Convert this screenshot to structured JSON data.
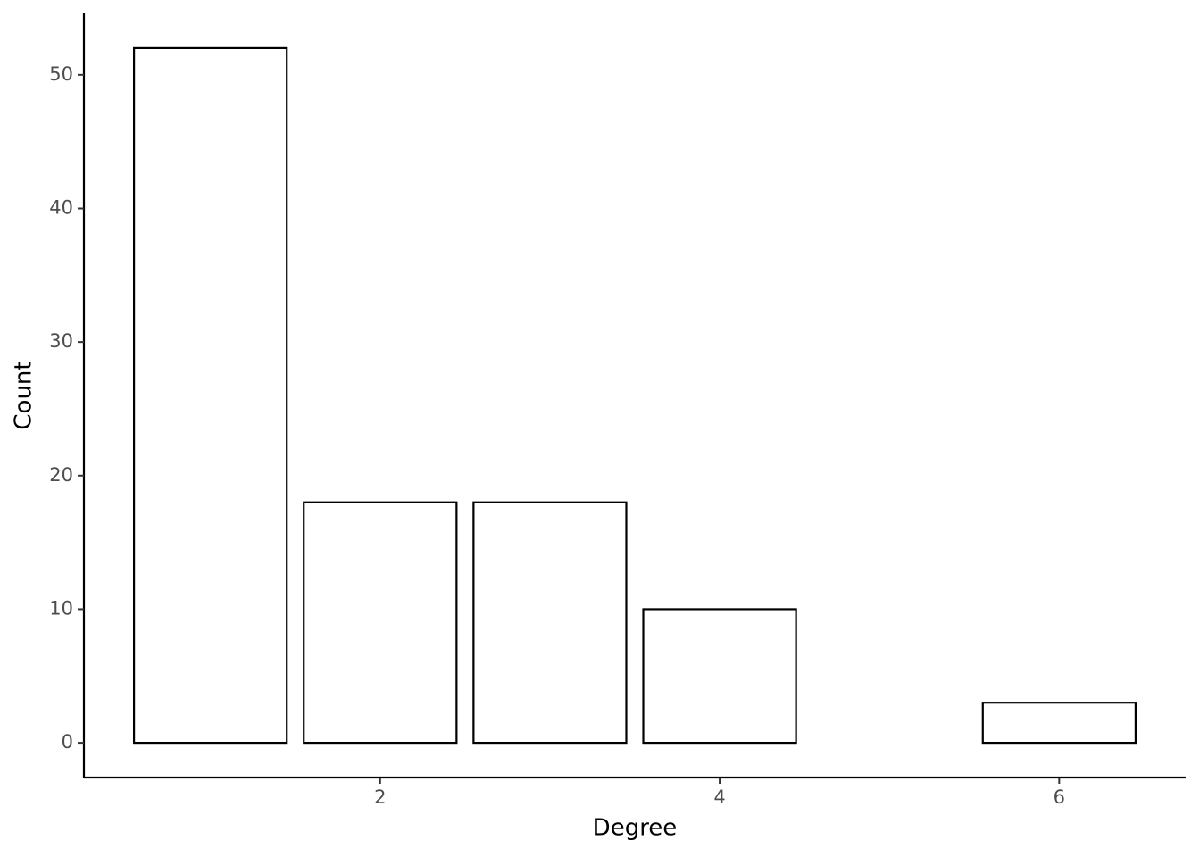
{
  "chart_data": {
    "type": "bar",
    "x": [
      1,
      2,
      3,
      4,
      6
    ],
    "values": [
      52,
      18,
      18,
      10,
      3
    ],
    "color": "#ffffff",
    "edgecolor": "#000000",
    "x_label": "Degree",
    "y_label": "Count",
    "xlim": [
      0.255,
      6.745
    ],
    "xticks": [
      2,
      4,
      6
    ],
    "ylim": [
      -2.6,
      54.6
    ],
    "yticks": [
      0,
      10,
      20,
      30,
      40,
      50
    ],
    "grid": false
  }
}
